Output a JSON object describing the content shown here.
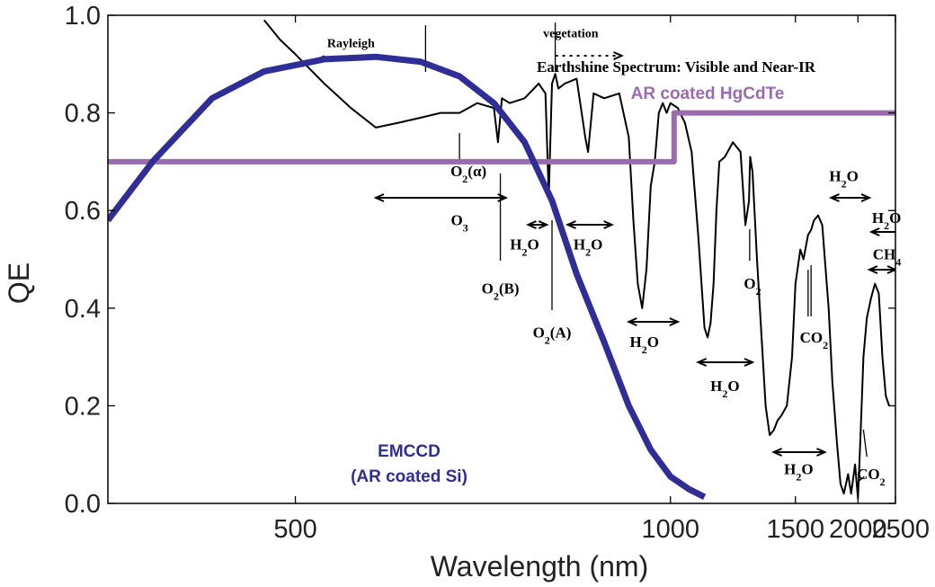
{
  "chart_data": {
    "type": "line",
    "title": "Earthshine Spectrum: Visible and Near-IR",
    "xlabel": "Wavelength (nm)",
    "ylabel": "QE",
    "x_scale": "reciprocal",
    "xlim": [
      400,
      2500
    ],
    "ylim": [
      0.0,
      1.0
    ],
    "x_ticks": [
      500,
      1000,
      1500,
      2000,
      2500
    ],
    "x_tick_labels": [
      "500",
      "1000",
      "1500",
      "2000",
      "2500"
    ],
    "y_ticks": [
      0.0,
      0.2,
      0.4,
      0.6,
      0.8,
      1.0
    ],
    "y_tick_labels": [
      "0.0",
      "0.2",
      "0.4",
      "0.6",
      "0.8",
      "1.0"
    ],
    "grid": false,
    "series": [
      {
        "name": "EMCCD (AR coated Si)",
        "label_lines": [
          "EMCCD",
          "(AR coated Si)"
        ],
        "color": "#2e2e96",
        "x": [
          400,
          420,
          450,
          480,
          520,
          560,
          600,
          640,
          680,
          720,
          760,
          800,
          850,
          900,
          950,
          1000,
          1050,
          1100
        ],
        "y": [
          0.58,
          0.7,
          0.83,
          0.885,
          0.91,
          0.915,
          0.905,
          0.875,
          0.82,
          0.74,
          0.62,
          0.47,
          0.33,
          0.2,
          0.11,
          0.055,
          0.03,
          0.013
        ]
      },
      {
        "name": "AR coated HgCdTe",
        "label_lines": [
          "AR coated HgCdTe"
        ],
        "color": "#9b6bb0",
        "x": [
          400,
          1010,
          1010,
          2500
        ],
        "y": [
          0.7,
          0.7,
          0.8,
          0.8
        ]
      },
      {
        "name": "Earthshine Spectrum",
        "color": "#000000",
        "x": [
          480,
          490,
          500,
          520,
          540,
          560,
          580,
          600,
          620,
          640,
          660,
          680,
          685,
          690,
          700,
          720,
          740,
          750,
          755,
          760,
          765,
          770,
          780,
          800,
          815,
          820,
          830,
          850,
          880,
          900,
          910,
          920,
          930,
          940,
          950,
          960,
          970,
          980,
          990,
          1000,
          1020,
          1040,
          1060,
          1080,
          1100,
          1110,
          1120,
          1130,
          1140,
          1150,
          1170,
          1200,
          1230,
          1250,
          1265,
          1270,
          1280,
          1300,
          1320,
          1340,
          1360,
          1380,
          1400,
          1420,
          1450,
          1480,
          1500,
          1530,
          1550,
          1580,
          1600,
          1620,
          1650,
          1680,
          1700,
          1730,
          1760,
          1800,
          1830,
          1860,
          1880,
          1900,
          1930,
          1950,
          1970,
          2000,
          2030,
          2060,
          2100,
          2150,
          2200,
          2250,
          2300,
          2350,
          2400
        ],
        "y": [
          0.99,
          0.95,
          0.92,
          0.86,
          0.81,
          0.77,
          0.78,
          0.79,
          0.8,
          0.8,
          0.82,
          0.81,
          0.74,
          0.83,
          0.82,
          0.83,
          0.86,
          0.84,
          0.63,
          0.86,
          0.88,
          0.85,
          0.86,
          0.87,
          0.75,
          0.72,
          0.84,
          0.83,
          0.84,
          0.75,
          0.58,
          0.45,
          0.4,
          0.48,
          0.65,
          0.7,
          0.8,
          0.82,
          0.8,
          0.82,
          0.81,
          0.78,
          0.72,
          0.55,
          0.36,
          0.34,
          0.37,
          0.45,
          0.6,
          0.7,
          0.71,
          0.74,
          0.72,
          0.57,
          0.62,
          0.71,
          0.68,
          0.5,
          0.35,
          0.2,
          0.14,
          0.15,
          0.17,
          0.18,
          0.2,
          0.3,
          0.45,
          0.52,
          0.5,
          0.55,
          0.56,
          0.58,
          0.59,
          0.57,
          0.5,
          0.4,
          0.25,
          0.12,
          0.04,
          0.02,
          0.04,
          0.06,
          0.02,
          0.05,
          0.08,
          0.01,
          0.15,
          0.3,
          0.38,
          0.42,
          0.45,
          0.43,
          0.3,
          0.22,
          0.2
        ]
      }
    ],
    "annotations": [
      {
        "text": "Rayleigh",
        "x": 540,
        "y": 0.935
      },
      {
        "text": "vegetation",
        "x": 790,
        "y": 0.955
      },
      {
        "text": "O3",
        "base": "O",
        "sub": "3",
        "x": 640,
        "y": 0.57
      },
      {
        "text": "O2(α)",
        "base": "O",
        "sub": "2",
        "suffix": "(α)",
        "x": 650,
        "y": 0.67
      },
      {
        "text": "O2(B)",
        "base": "O",
        "sub": "2",
        "suffix": "(B)",
        "x": 688,
        "y": 0.43
      },
      {
        "text": "O2(A)",
        "base": "O",
        "sub": "2",
        "suffix": "(A)",
        "x": 760,
        "y": 0.34
      },
      {
        "text": "H2O",
        "base": "H",
        "sub": "2",
        "suffix": "O",
        "x": 720,
        "y": 0.52
      },
      {
        "text": "H2O",
        "base": "H",
        "sub": "2",
        "suffix": "O",
        "x": 820,
        "y": 0.52
      },
      {
        "text": "H2O",
        "base": "H",
        "sub": "2",
        "suffix": "O",
        "x": 935,
        "y": 0.32
      },
      {
        "text": "H2O",
        "base": "H",
        "sub": "2",
        "suffix": "O",
        "x": 1170,
        "y": 0.23
      },
      {
        "text": "O2",
        "base": "O",
        "sub": "2",
        "x": 1280,
        "y": 0.44
      },
      {
        "text": "H2O",
        "base": "H",
        "sub": "2",
        "suffix": "O",
        "x": 1520,
        "y": 0.06
      },
      {
        "text": "CO2",
        "base": "CO",
        "sub": "2",
        "x": 1620,
        "y": 0.33
      },
      {
        "text": "H2O",
        "base": "H",
        "sub": "2",
        "suffix": "O",
        "x": 1860,
        "y": 0.66
      },
      {
        "text": "CO2",
        "base": "CO",
        "sub": "2",
        "x": 2150,
        "y": 0.05
      },
      {
        "text": "H2O",
        "base": "H",
        "sub": "2",
        "suffix": "O",
        "x": 2360,
        "y": 0.575
      },
      {
        "text": "CH4",
        "base": "CH",
        "sub": "4",
        "x": 2365,
        "y": 0.5
      }
    ],
    "legend": "none"
  }
}
